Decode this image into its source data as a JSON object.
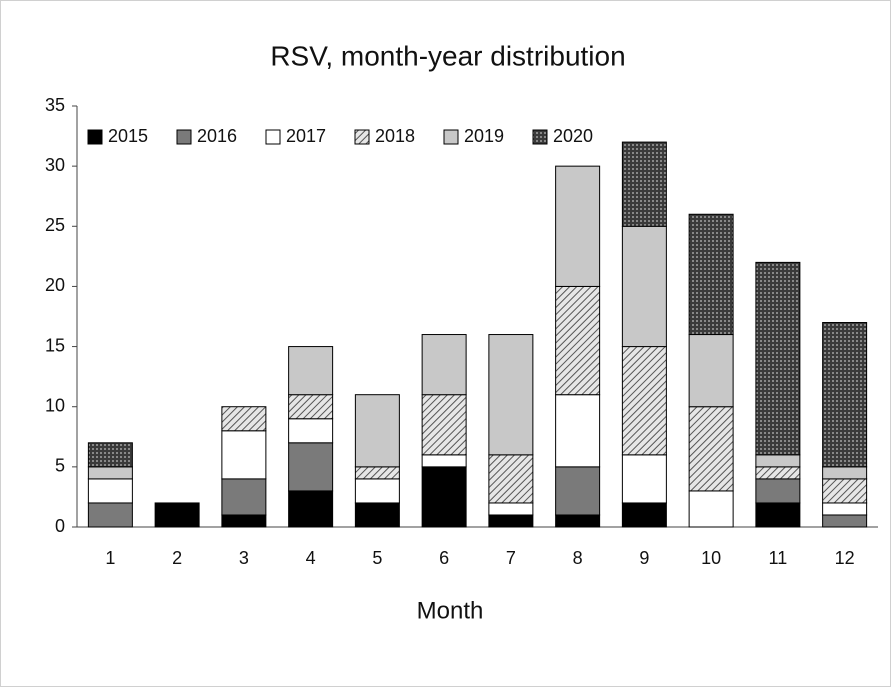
{
  "chart_data": {
    "type": "stacked_bar",
    "title": "RSV, month-year distribution",
    "x_label": "Month",
    "categories": [
      "1",
      "2",
      "3",
      "4",
      "5",
      "6",
      "7",
      "8",
      "9",
      "10",
      "11",
      "12"
    ],
    "series": [
      {
        "name": "2015",
        "color": "#000000",
        "pattern": "solid",
        "values": [
          0,
          2,
          1,
          3,
          2,
          5,
          1,
          1,
          2,
          0,
          2,
          0
        ]
      },
      {
        "name": "2016",
        "color": "#7a7a7a",
        "pattern": "solid",
        "values": [
          2,
          0,
          3,
          4,
          0,
          0,
          0,
          4,
          0,
          0,
          2,
          1
        ]
      },
      {
        "name": "2017",
        "color": "#ffffff",
        "pattern": "solid",
        "values": [
          2,
          0,
          4,
          2,
          2,
          1,
          1,
          6,
          4,
          3,
          0,
          1
        ]
      },
      {
        "name": "2018",
        "color": "#555555",
        "pattern": "diagonal",
        "values": [
          0,
          0,
          2,
          2,
          1,
          5,
          4,
          9,
          9,
          7,
          1,
          2
        ]
      },
      {
        "name": "2019",
        "color": "#c8c8c8",
        "pattern": "solid",
        "values": [
          1,
          0,
          0,
          4,
          6,
          5,
          10,
          10,
          10,
          6,
          1,
          1
        ]
      },
      {
        "name": "2020",
        "color": "#333333",
        "pattern": "crosshatch",
        "values": [
          2,
          0,
          0,
          0,
          0,
          0,
          0,
          0,
          7,
          10,
          16,
          12
        ]
      }
    ],
    "ylim": [
      0,
      35
    ],
    "yticks": [
      0,
      5,
      10,
      15,
      20,
      25,
      30,
      35
    ],
    "grid": false,
    "legend": "top-left"
  }
}
